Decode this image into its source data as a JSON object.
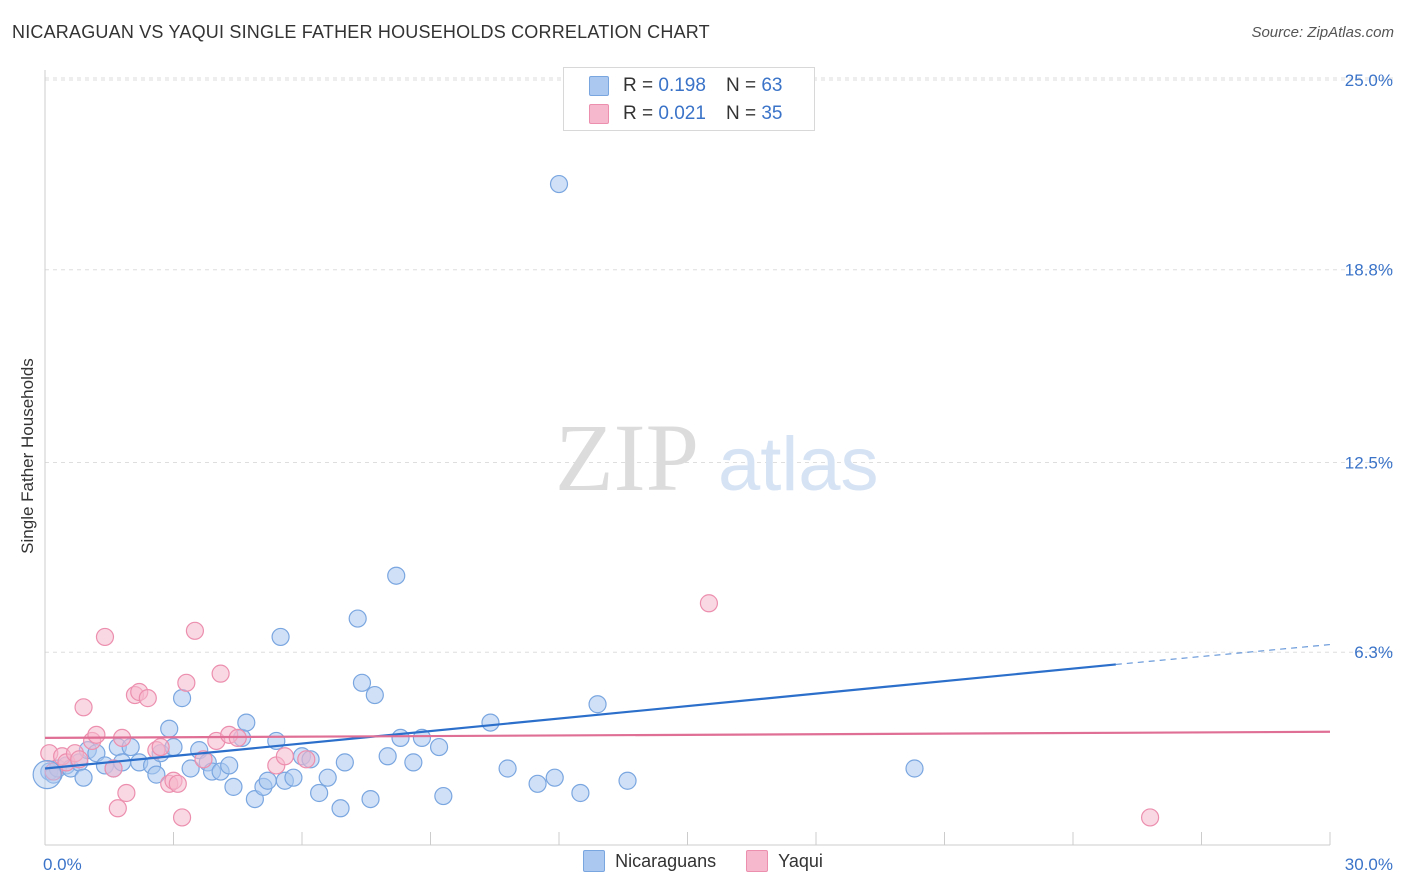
{
  "title": "NICARAGUAN VS YAQUI SINGLE FATHER HOUSEHOLDS CORRELATION CHART",
  "source": "Source: ZipAtlas.com",
  "watermark": {
    "zip": "ZIP",
    "atlas": "atlas"
  },
  "legend": {
    "rows": [
      {
        "r_label": "R =",
        "r_value": "0.198",
        "n_label": "N =",
        "n_value": "63",
        "color": "#aac8f0"
      },
      {
        "r_label": "R =",
        "r_value": "0.021",
        "n_label": "N =",
        "n_value": "35",
        "color": "#f5b8cc"
      }
    ]
  },
  "bottom_legend": [
    {
      "label": "Nicaraguans",
      "color": "#aac8f0"
    },
    {
      "label": "Yaqui",
      "color": "#f5b8cc"
    }
  ],
  "chart_data": {
    "type": "scatter",
    "title": "NICARAGUAN VS YAQUI SINGLE FATHER HOUSEHOLDS CORRELATION CHART",
    "xlabel": "",
    "ylabel": "Single Father Households",
    "xlim": [
      0,
      30
    ],
    "ylim": [
      0,
      26
    ],
    "x_tick_labels": [
      "0.0%",
      "30.0%"
    ],
    "y_ticks": [
      6.3,
      12.5,
      18.8,
      25.0
    ],
    "y_tick_labels": [
      "6.3%",
      "12.5%",
      "18.8%",
      "25.0%"
    ],
    "grid": true,
    "series": [
      {
        "name": "Nicaraguans",
        "color": "#7aa6e0",
        "fill": "#aac8f0",
        "trend_color": "#2b6fcb",
        "trend": {
          "x": [
            0,
            25
          ],
          "y": [
            2.5,
            5.9
          ],
          "dashed_x": [
            25,
            30
          ],
          "dashed_y": [
            5.9,
            6.55
          ]
        },
        "points": [
          [
            0.1,
            2.4
          ],
          [
            0.2,
            2.3
          ],
          [
            0.3,
            2.5
          ],
          [
            0.5,
            2.6
          ],
          [
            0.6,
            2.5
          ],
          [
            0.8,
            2.7
          ],
          [
            0.9,
            2.2
          ],
          [
            1.0,
            3.1
          ],
          [
            1.2,
            3.0
          ],
          [
            1.4,
            2.6
          ],
          [
            1.6,
            2.5
          ],
          [
            1.7,
            3.2
          ],
          [
            1.8,
            2.7
          ],
          [
            2.0,
            3.2
          ],
          [
            2.2,
            2.7
          ],
          [
            2.5,
            2.6
          ],
          [
            2.6,
            2.3
          ],
          [
            2.7,
            3.0
          ],
          [
            2.9,
            3.8
          ],
          [
            3.0,
            3.2
          ],
          [
            3.2,
            4.8
          ],
          [
            3.4,
            2.5
          ],
          [
            3.6,
            3.1
          ],
          [
            3.8,
            2.7
          ],
          [
            3.9,
            2.4
          ],
          [
            4.1,
            2.4
          ],
          [
            4.3,
            2.6
          ],
          [
            4.4,
            1.9
          ],
          [
            4.6,
            3.5
          ],
          [
            4.7,
            4.0
          ],
          [
            4.9,
            1.5
          ],
          [
            5.1,
            1.9
          ],
          [
            5.2,
            2.1
          ],
          [
            5.4,
            3.4
          ],
          [
            5.5,
            6.8
          ],
          [
            5.6,
            2.1
          ],
          [
            5.8,
            2.2
          ],
          [
            6.0,
            2.9
          ],
          [
            6.2,
            2.8
          ],
          [
            6.4,
            1.7
          ],
          [
            6.6,
            2.2
          ],
          [
            6.9,
            1.2
          ],
          [
            7.0,
            2.7
          ],
          [
            7.3,
            7.4
          ],
          [
            7.4,
            5.3
          ],
          [
            7.6,
            1.5
          ],
          [
            7.7,
            4.9
          ],
          [
            8.0,
            2.9
          ],
          [
            8.2,
            8.8
          ],
          [
            8.3,
            3.5
          ],
          [
            8.6,
            2.7
          ],
          [
            8.8,
            3.5
          ],
          [
            9.2,
            3.2
          ],
          [
            9.3,
            1.6
          ],
          [
            10.4,
            4.0
          ],
          [
            10.8,
            2.5
          ],
          [
            11.5,
            2.0
          ],
          [
            11.9,
            2.2
          ],
          [
            12.0,
            21.6
          ],
          [
            12.5,
            1.7
          ],
          [
            12.9,
            4.6
          ],
          [
            13.6,
            2.1
          ],
          [
            20.3,
            2.5
          ]
        ]
      },
      {
        "name": "Yaqui",
        "color": "#ec8fae",
        "fill": "#f5b8cc",
        "trend_color": "#e06f96",
        "trend": {
          "x": [
            0,
            30
          ],
          "y": [
            3.5,
            3.7
          ]
        },
        "points": [
          [
            0.1,
            3.0
          ],
          [
            0.2,
            2.4
          ],
          [
            0.4,
            2.9
          ],
          [
            0.5,
            2.7
          ],
          [
            0.7,
            3.0
          ],
          [
            0.8,
            2.8
          ],
          [
            0.9,
            4.5
          ],
          [
            1.1,
            3.4
          ],
          [
            1.2,
            3.6
          ],
          [
            1.4,
            6.8
          ],
          [
            1.6,
            2.5
          ],
          [
            1.7,
            1.2
          ],
          [
            1.8,
            3.5
          ],
          [
            1.9,
            1.7
          ],
          [
            2.1,
            4.9
          ],
          [
            2.2,
            5.0
          ],
          [
            2.4,
            4.8
          ],
          [
            2.6,
            3.1
          ],
          [
            2.7,
            3.2
          ],
          [
            2.9,
            2.0
          ],
          [
            3.0,
            2.1
          ],
          [
            3.1,
            2.0
          ],
          [
            3.2,
            0.9
          ],
          [
            3.3,
            5.3
          ],
          [
            3.5,
            7.0
          ],
          [
            3.7,
            2.8
          ],
          [
            4.0,
            3.4
          ],
          [
            4.1,
            5.6
          ],
          [
            4.3,
            3.6
          ],
          [
            4.5,
            3.5
          ],
          [
            5.4,
            2.6
          ],
          [
            5.6,
            2.9
          ],
          [
            6.1,
            2.8
          ],
          [
            15.5,
            7.9
          ],
          [
            25.8,
            0.9
          ]
        ]
      }
    ]
  }
}
